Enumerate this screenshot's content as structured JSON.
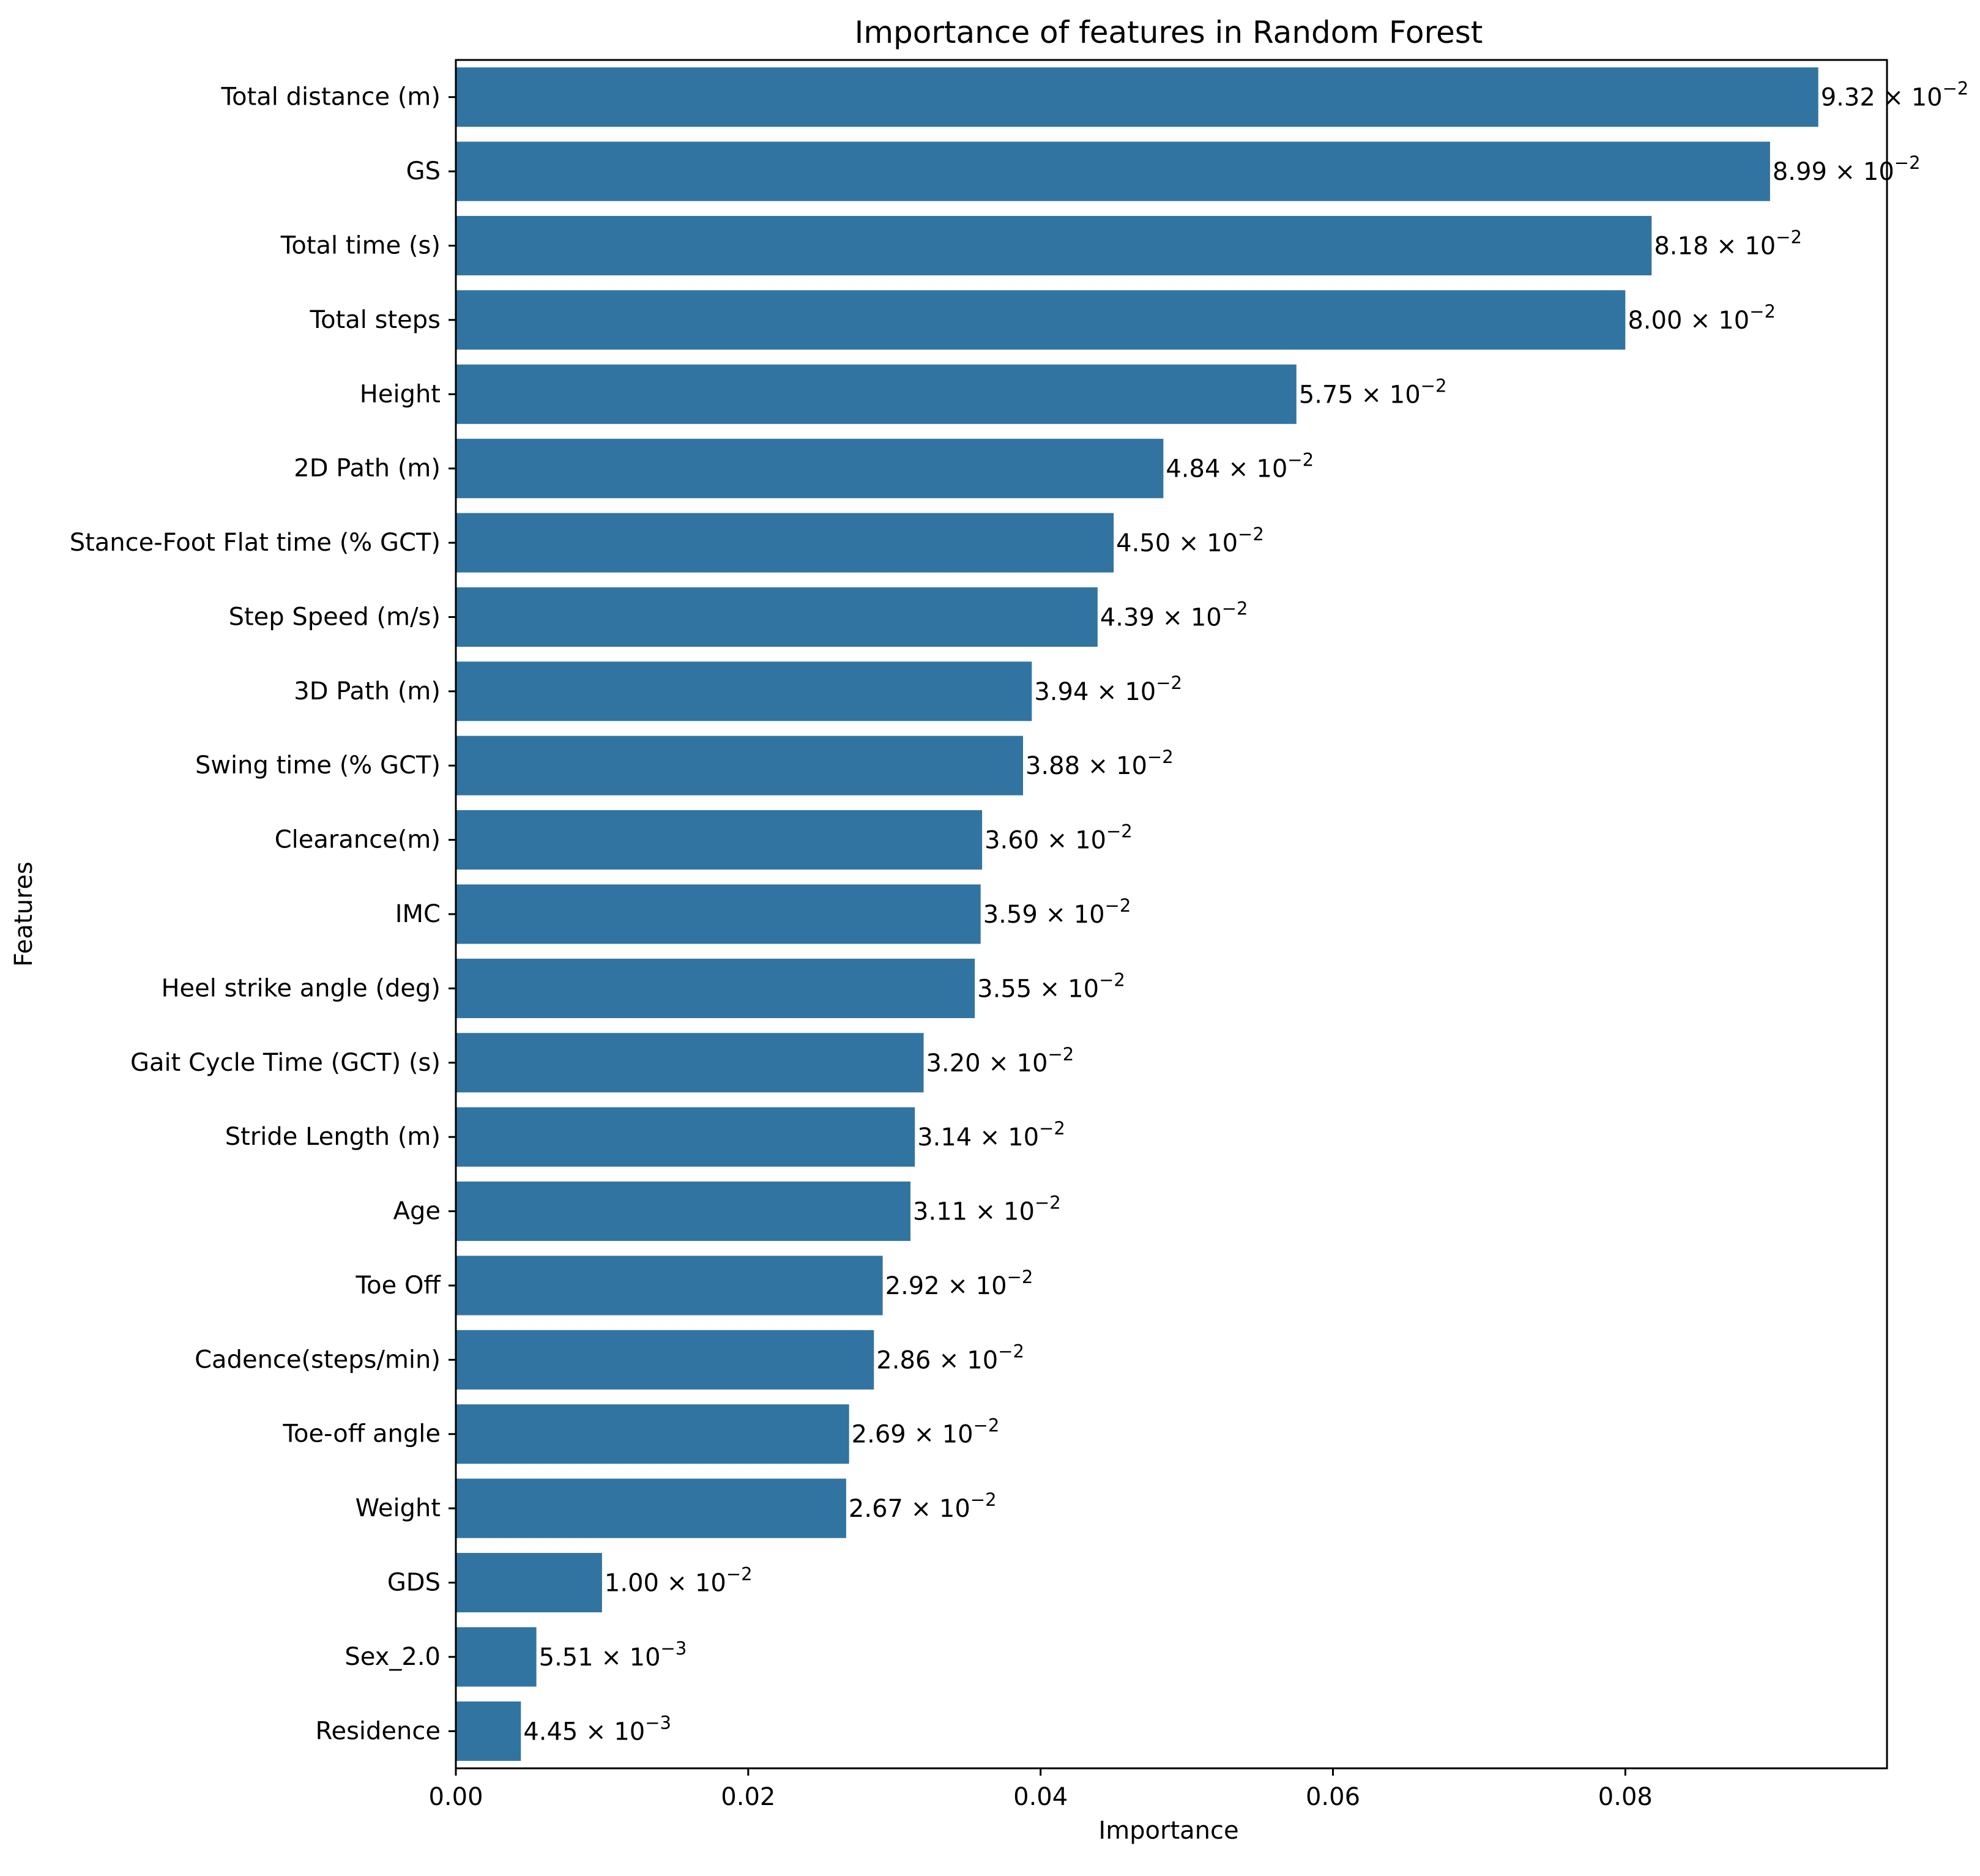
{
  "chart_data": {
    "type": "bar",
    "orientation": "horizontal",
    "title": "Importance of features in Random Forest",
    "xlabel": "Importance",
    "ylabel": "Features",
    "xlim": [
      0,
      0.0979
    ],
    "xticks": [
      {
        "value": 0.0,
        "label": "0.00"
      },
      {
        "value": 0.02,
        "label": "0.02"
      },
      {
        "value": 0.04,
        "label": "0.04"
      },
      {
        "value": 0.06,
        "label": "0.06"
      },
      {
        "value": 0.08,
        "label": "0.08"
      }
    ],
    "grid": false,
    "bar_color": "#3274a1",
    "categories": [
      "Total distance (m)",
      "GS",
      "Total time (s)",
      "Total steps",
      "Height",
      "2D Path (m)",
      "Stance-Foot Flat time (% GCT)",
      "Step Speed (m/s)",
      "3D Path (m)",
      "Swing time (% GCT)",
      "Clearance(m)",
      "IMC",
      "Heel strike angle (deg)",
      "Gait Cycle Time (GCT) (s)",
      "Stride Length (m)",
      "Age",
      "Toe Off",
      "Cadence(steps/min)",
      "Toe-off angle",
      "Weight",
      "GDS",
      "Sex_2.0",
      "Residence"
    ],
    "values": [
      0.0932,
      0.0899,
      0.0818,
      0.08,
      0.0575,
      0.0484,
      0.045,
      0.0439,
      0.0394,
      0.0388,
      0.036,
      0.0359,
      0.0355,
      0.032,
      0.0314,
      0.0311,
      0.0292,
      0.0286,
      0.0269,
      0.0267,
      0.01,
      0.00551,
      0.00445
    ],
    "data_labels": [
      {
        "mantissa": "9.32",
        "times": " × 10",
        "exponent": "−2"
      },
      {
        "mantissa": "8.99",
        "times": " × 10",
        "exponent": "−2"
      },
      {
        "mantissa": "8.18",
        "times": " × 10",
        "exponent": "−2"
      },
      {
        "mantissa": "8.00",
        "times": " × 10",
        "exponent": "−2"
      },
      {
        "mantissa": "5.75",
        "times": " × 10",
        "exponent": "−2"
      },
      {
        "mantissa": "4.84",
        "times": " × 10",
        "exponent": "−2"
      },
      {
        "mantissa": "4.50",
        "times": " × 10",
        "exponent": "−2"
      },
      {
        "mantissa": "4.39",
        "times": " × 10",
        "exponent": "−2"
      },
      {
        "mantissa": "3.94",
        "times": " × 10",
        "exponent": "−2"
      },
      {
        "mantissa": "3.88",
        "times": " × 10",
        "exponent": "−2"
      },
      {
        "mantissa": "3.60",
        "times": " × 10",
        "exponent": "−2"
      },
      {
        "mantissa": "3.59",
        "times": " × 10",
        "exponent": "−2"
      },
      {
        "mantissa": "3.55",
        "times": " × 10",
        "exponent": "−2"
      },
      {
        "mantissa": "3.20",
        "times": " × 10",
        "exponent": "−2"
      },
      {
        "mantissa": "3.14",
        "times": " × 10",
        "exponent": "−2"
      },
      {
        "mantissa": "3.11",
        "times": " × 10",
        "exponent": "−2"
      },
      {
        "mantissa": "2.92",
        "times": " × 10",
        "exponent": "−2"
      },
      {
        "mantissa": "2.86",
        "times": " × 10",
        "exponent": "−2"
      },
      {
        "mantissa": "2.69",
        "times": " × 10",
        "exponent": "−2"
      },
      {
        "mantissa": "2.67",
        "times": " × 10",
        "exponent": "−2"
      },
      {
        "mantissa": "1.00",
        "times": " × 10",
        "exponent": "−2"
      },
      {
        "mantissa": "5.51",
        "times": " × 10",
        "exponent": "−3"
      },
      {
        "mantissa": "4.45",
        "times": " × 10",
        "exponent": "−3"
      }
    ]
  }
}
